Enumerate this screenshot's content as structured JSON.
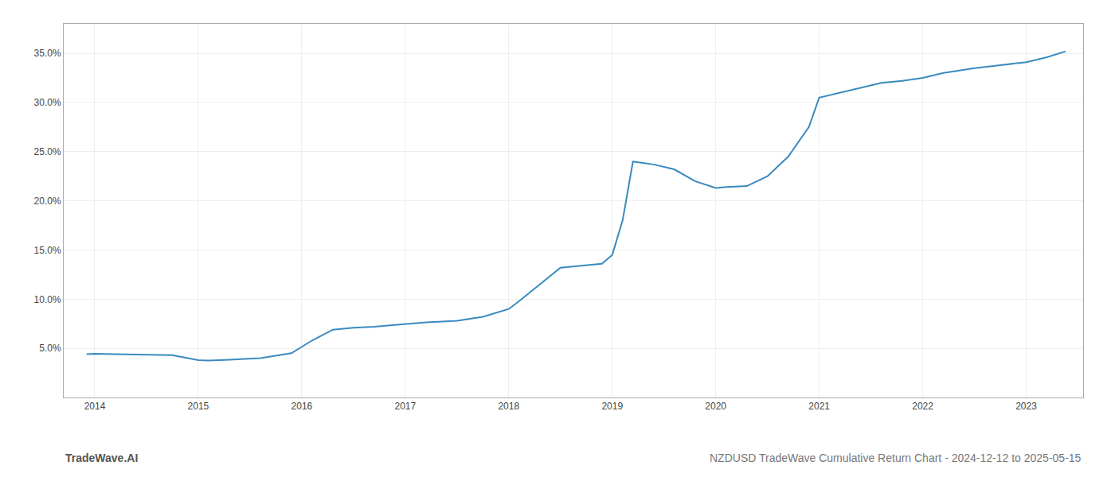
{
  "chart_data": {
    "type": "line",
    "title": "NZDUSD TradeWave Cumulative Return Chart - 2024-12-12 to 2025-05-15",
    "annotations": [
      "TradeWave.AI"
    ],
    "x": [
      2013.92,
      2014.0,
      2014.2,
      2014.5,
      2014.75,
      2015.0,
      2015.1,
      2015.3,
      2015.6,
      2015.9,
      2016.1,
      2016.3,
      2016.5,
      2016.7,
      2017.0,
      2017.2,
      2017.5,
      2017.75,
      2018.0,
      2018.1,
      2018.3,
      2018.5,
      2018.7,
      2018.9,
      2019.0,
      2019.1,
      2019.2,
      2019.4,
      2019.6,
      2019.8,
      2020.0,
      2020.1,
      2020.3,
      2020.5,
      2020.7,
      2020.9,
      2021.0,
      2021.2,
      2021.4,
      2021.6,
      2021.8,
      2022.0,
      2022.2,
      2022.5,
      2022.75,
      2023.0,
      2023.2,
      2023.38
    ],
    "values": [
      4.4,
      4.45,
      4.4,
      4.35,
      4.3,
      3.8,
      3.75,
      3.85,
      4.0,
      4.5,
      5.8,
      6.9,
      7.1,
      7.2,
      7.5,
      7.65,
      7.8,
      8.2,
      9.0,
      9.8,
      11.5,
      13.2,
      13.4,
      13.6,
      14.5,
      18.0,
      24.0,
      23.7,
      23.2,
      22.0,
      21.3,
      21.4,
      21.5,
      22.5,
      24.5,
      27.5,
      30.5,
      31.0,
      31.5,
      32.0,
      32.2,
      32.5,
      33.0,
      33.5,
      33.8,
      34.1,
      34.6,
      35.2
    ],
    "color": "#3a8abf",
    "xlim": [
      2013.7,
      2023.55
    ],
    "ylim": [
      0,
      38
    ],
    "xticks": [
      2014,
      2015,
      2016,
      2017,
      2018,
      2019,
      2020,
      2021,
      2022,
      2023
    ],
    "yticks": [
      {
        "value": 5.0,
        "label": "5.0%"
      },
      {
        "value": 10.0,
        "label": "10.0%"
      },
      {
        "value": 15.0,
        "label": "15.0%"
      },
      {
        "value": 20.0,
        "label": "20.0%"
      },
      {
        "value": 25.0,
        "label": "25.0%"
      },
      {
        "value": 30.0,
        "label": "30.0%"
      },
      {
        "value": 35.0,
        "label": "35.0%"
      }
    ],
    "grid": true
  }
}
